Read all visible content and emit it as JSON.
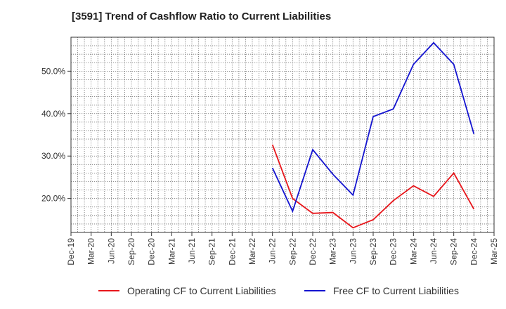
{
  "chart_data": {
    "type": "line",
    "title": "[3591]  Trend of Cashflow Ratio to Current Liabilities",
    "xlabel": "",
    "ylabel": "",
    "categories": [
      "Dec-19",
      "Mar-20",
      "Jun-20",
      "Sep-20",
      "Dec-20",
      "Mar-21",
      "Jun-21",
      "Sep-21",
      "Dec-21",
      "Mar-22",
      "Jun-22",
      "Sep-22",
      "Dec-22",
      "Mar-23",
      "Jun-23",
      "Sep-23",
      "Dec-23",
      "Mar-24",
      "Jun-24",
      "Sep-24",
      "Dec-24",
      "Mar-25"
    ],
    "y_ticks": [
      "20.0%",
      "30.0%",
      "40.0%",
      "50.0%"
    ],
    "y_tick_values": [
      20,
      30,
      40,
      50
    ],
    "ylim": [
      12,
      58
    ],
    "grid": true,
    "legend_position": "bottom",
    "series": [
      {
        "name": "Operating CF to Current Liabilities",
        "color": "#e8161b",
        "values": [
          null,
          null,
          null,
          null,
          null,
          null,
          null,
          null,
          null,
          null,
          32.7,
          20.0,
          16.5,
          16.7,
          13.1,
          15.0,
          19.5,
          23.0,
          20.5,
          26.0,
          17.5,
          null
        ]
      },
      {
        "name": "Free CF to Current Liabilities",
        "color": "#1414d0",
        "values": [
          null,
          null,
          null,
          null,
          null,
          null,
          null,
          null,
          null,
          null,
          27.2,
          17.0,
          31.5,
          25.7,
          20.8,
          39.3,
          41.1,
          51.6,
          56.7,
          51.6,
          35.2,
          null
        ]
      }
    ]
  }
}
